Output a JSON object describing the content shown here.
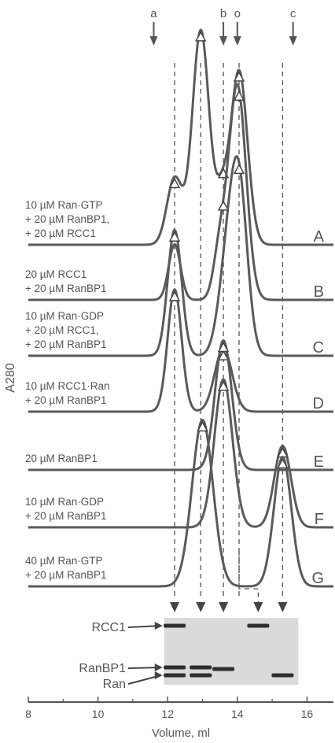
{
  "chart_data": {
    "type": "line",
    "xlabel": "Volume, ml",
    "ylabel": "A280",
    "xlim": [
      8,
      16.8
    ],
    "xticks": [
      8,
      10,
      12,
      14,
      16
    ],
    "markers": [
      {
        "label": "a",
        "x": 11.6
      },
      {
        "label": "b",
        "x": 13.6
      },
      {
        "label": "o",
        "x": 14.0
      },
      {
        "label": "c",
        "x": 15.6
      }
    ],
    "series": [
      {
        "name": "A",
        "legend": [
          "10 µM Ran·GTP",
          "+ 20 µM RanBP1,",
          "+ 20 µM RCC1"
        ],
        "peaks": [
          {
            "x": 12.2,
            "h": 0.18,
            "w": 0.22
          },
          {
            "x": 12.95,
            "h": 0.58,
            "w": 0.24
          },
          {
            "x": 13.55,
            "h": 0.12,
            "w": 0.18
          },
          {
            "x": 14.05,
            "h": 0.47,
            "w": 0.24
          }
        ],
        "triangles": [
          12.2,
          12.95,
          13.6,
          14.05
        ]
      },
      {
        "name": "B",
        "legend": [
          "20 µM RCC1",
          "+ 20 µM RanBP1"
        ],
        "peaks": [
          {
            "x": 12.2,
            "h": 0.15,
            "w": 0.17
          },
          {
            "x": 13.5,
            "h": 0.13,
            "w": 0.18
          },
          {
            "x": 14.0,
            "h": 0.58,
            "w": 0.25
          }
        ],
        "triangles": [
          13.6,
          14.05
        ]
      },
      {
        "name": "C",
        "legend": [
          "10 µM Ran·GDP",
          "+ 20 µM RCC1,",
          "+ 20 µM RanBP1"
        ],
        "peaks": [
          {
            "x": 12.2,
            "h": 0.34,
            "w": 0.2
          },
          {
            "x": 13.7,
            "h": 0.22,
            "w": 0.25
          },
          {
            "x": 14.05,
            "h": 0.44,
            "w": 0.24
          }
        ],
        "triangles": [
          12.2,
          14.05
        ]
      },
      {
        "name": "D",
        "legend": [
          "10 µM RCC1·Ran",
          "+ 20 µM RanBP1"
        ],
        "peaks": [
          {
            "x": 12.2,
            "h": 0.33,
            "w": 0.2
          },
          {
            "x": 13.6,
            "h": 0.17,
            "w": 0.25
          }
        ],
        "triangles": [
          12.2,
          13.6
        ]
      },
      {
        "name": "E",
        "legend": [
          "20 µM RanBP1"
        ],
        "peaks": [
          {
            "x": 13.6,
            "h": 0.35,
            "w": 0.24
          }
        ],
        "triangles": [
          13.6
        ]
      },
      {
        "name": "F",
        "legend": [
          "10 µM Ran·GDP",
          "+ 20 µM RanBP1"
        ],
        "peaks": [
          {
            "x": 13.6,
            "h": 0.4,
            "w": 0.26
          },
          {
            "x": 15.3,
            "h": 0.22,
            "w": 0.24
          }
        ],
        "triangles": [
          13.6,
          15.3
        ]
      },
      {
        "name": "G",
        "legend": [
          "40 µM Ran·GTP",
          "+ 20 µM RanBP1"
        ],
        "peaks": [
          {
            "x": 13.0,
            "h": 0.45,
            "w": 0.3
          },
          {
            "x": 15.3,
            "h": 0.35,
            "w": 0.25
          }
        ],
        "triangles": [
          13.0,
          15.3
        ]
      }
    ],
    "gel": {
      "lanes": [
        12.2,
        12.95,
        13.6,
        14.6,
        15.3
      ],
      "lane_bands": [
        [
          "RCC1",
          "RanBP1",
          "Ran"
        ],
        [
          "RanBP1",
          "Ran"
        ],
        [
          "RanBP1"
        ],
        [
          "RCC1"
        ],
        [
          "Ran"
        ]
      ],
      "band_labels": [
        "RCC1",
        "RanBP1",
        "Ran"
      ]
    }
  }
}
